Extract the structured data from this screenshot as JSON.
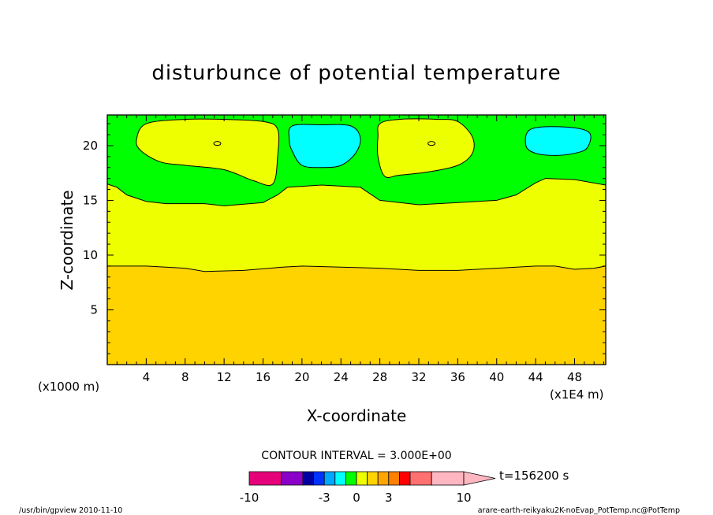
{
  "chart_data": {
    "type": "heatmap",
    "title": "disturbunce of potential temperature",
    "xlabel": "X-coordinate",
    "ylabel": "Z-coordinate",
    "z_unit_label": "(x1000 m)",
    "x_unit_label": "(x1E4 m)",
    "xlim": [
      0,
      51.2
    ],
    "ylim": [
      0,
      22.8
    ],
    "x_ticks": [
      4,
      8,
      12,
      16,
      20,
      24,
      28,
      32,
      36,
      40,
      44,
      48
    ],
    "y_ticks": [
      5,
      10,
      15,
      20
    ],
    "contour_interval_label": "CONTOUR INTERVAL = 3.000E+00",
    "time_label": "t=156200 s",
    "colorbar": {
      "levels": [
        -10,
        -7,
        -5,
        -4,
        -3,
        -2,
        -1,
        0,
        1,
        2,
        3,
        4,
        5,
        7,
        10
      ],
      "tick_labels": [
        "-10",
        "-3",
        "0",
        "3",
        "10"
      ],
      "tick_values": [
        -10,
        -3,
        0,
        3,
        10
      ],
      "colors": [
        "#e6007a",
        "#8a00c8",
        "#0000a0",
        "#0033ff",
        "#00a8ff",
        "#00ffff",
        "#00ff00",
        "#eeff00",
        "#ffd300",
        "#ffa500",
        "#ff7f00",
        "#ff0000",
        "#ff7070",
        "#ffb6c1"
      ],
      "overflow_color": "#ffb6c1"
    },
    "regions": [
      {
        "name": "lower layer",
        "color": "#ffd300",
        "top_z": [
          [
            0,
            9.0
          ],
          [
            4,
            9.0
          ],
          [
            8,
            8.8
          ],
          [
            10,
            8.5
          ],
          [
            14,
            8.6
          ],
          [
            18,
            8.9
          ],
          [
            20,
            9.0
          ],
          [
            24,
            8.9
          ],
          [
            28,
            8.8
          ],
          [
            32,
            8.6
          ],
          [
            36,
            8.6
          ],
          [
            40,
            8.8
          ],
          [
            44,
            9.0
          ],
          [
            46,
            9.0
          ],
          [
            48,
            8.7
          ],
          [
            50,
            8.8
          ],
          [
            51.2,
            9.0
          ]
        ]
      },
      {
        "name": "middle layer",
        "color": "#eeff00",
        "top_z": [
          [
            0,
            16.5
          ],
          [
            1,
            16.2
          ],
          [
            2,
            15.5
          ],
          [
            4,
            14.9
          ],
          [
            6,
            14.7
          ],
          [
            10,
            14.7
          ],
          [
            12,
            14.5
          ],
          [
            16,
            14.8
          ],
          [
            17.5,
            15.5
          ],
          [
            18.5,
            16.2
          ],
          [
            22,
            16.4
          ],
          [
            26,
            16.2
          ],
          [
            28,
            15.0
          ],
          [
            32,
            14.6
          ],
          [
            36,
            14.8
          ],
          [
            40,
            15.0
          ],
          [
            42,
            15.5
          ],
          [
            44,
            16.6
          ],
          [
            45,
            17.0
          ],
          [
            48,
            16.9
          ],
          [
            51.2,
            16.4
          ]
        ]
      },
      {
        "name": "upper layer",
        "color": "#00ff00",
        "top_z": [
          [
            0,
            22.8
          ],
          [
            51.2,
            22.8
          ]
        ]
      }
    ],
    "cells": [
      {
        "color": "#eeff00",
        "outline": [
          [
            4,
            22.0
          ],
          [
            8,
            22.4
          ],
          [
            12,
            22.4
          ],
          [
            16,
            22.2
          ],
          [
            17.5,
            21.5
          ],
          [
            17.5,
            19.0
          ],
          [
            17,
            16.5
          ],
          [
            15,
            16.8
          ],
          [
            12,
            17.8
          ],
          [
            8,
            18.2
          ],
          [
            5.5,
            18.5
          ],
          [
            3.5,
            19.5
          ],
          [
            3.0,
            20.5
          ]
        ]
      },
      {
        "color": "#00ffff",
        "outline": [
          [
            19,
            21.8
          ],
          [
            22,
            21.9
          ],
          [
            25,
            21.8
          ],
          [
            26,
            20.7
          ],
          [
            25.5,
            19.3
          ],
          [
            24,
            18.2
          ],
          [
            22,
            18.0
          ],
          [
            20,
            18.2
          ],
          [
            19,
            19.5
          ],
          [
            18.7,
            20.5
          ]
        ]
      },
      {
        "color": "#eeff00",
        "outline": [
          [
            28,
            22.0
          ],
          [
            30,
            22.4
          ],
          [
            34,
            22.4
          ],
          [
            36,
            22.2
          ],
          [
            37.5,
            20.8
          ],
          [
            37.5,
            19.3
          ],
          [
            36,
            18.2
          ],
          [
            33,
            17.6
          ],
          [
            30,
            17.3
          ],
          [
            28.5,
            17.2
          ],
          [
            27.8,
            19
          ],
          [
            27.8,
            20.8
          ]
        ]
      },
      {
        "color": "#00ffff",
        "outline": [
          [
            43.5,
            21.5
          ],
          [
            47,
            21.7
          ],
          [
            49.5,
            21.2
          ],
          [
            49.3,
            19.8
          ],
          [
            48,
            19.3
          ],
          [
            46,
            19.1
          ],
          [
            44,
            19.3
          ],
          [
            43,
            20.0
          ]
        ]
      }
    ],
    "small_contours": [
      [
        11.3,
        20.2
      ],
      [
        33.3,
        20.2
      ]
    ]
  },
  "footer": {
    "left": "/usr/bin/gpview  2010-11-10",
    "right": "arare-earth-reikyaku2K-noEvap_PotTemp.nc@PotTemp"
  }
}
